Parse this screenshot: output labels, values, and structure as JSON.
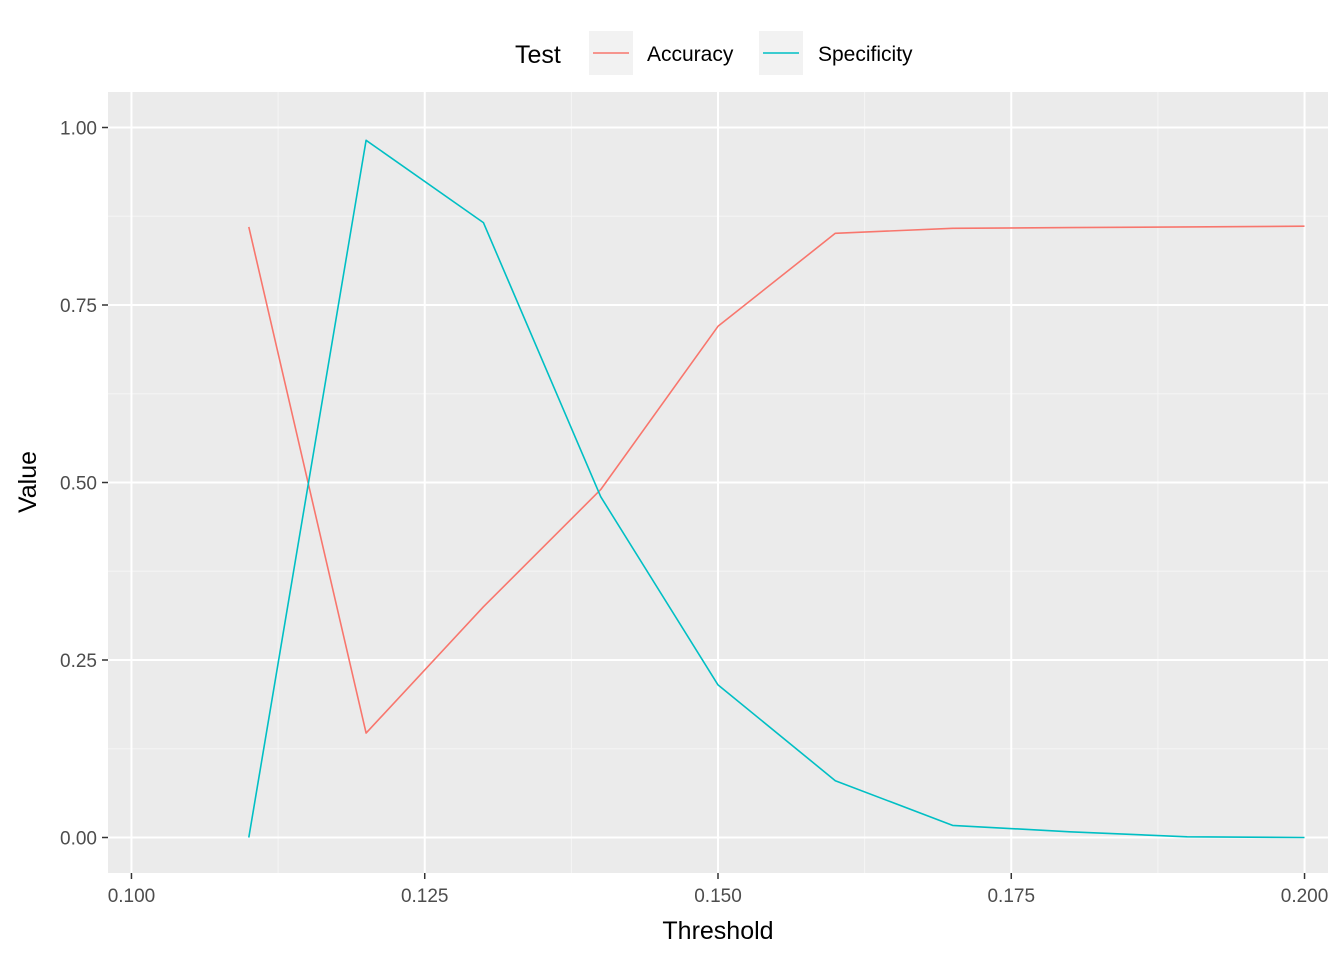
{
  "chart_data": {
    "type": "line",
    "xlabel": "Threshold",
    "ylabel": "Value",
    "xlim": [
      0.098,
      0.202
    ],
    "ylim": [
      -0.05,
      1.05
    ],
    "x_ticks": [
      0.1,
      0.125,
      0.15,
      0.175,
      0.2
    ],
    "x_tick_labels": [
      "0.100",
      "0.125",
      "0.150",
      "0.175",
      "0.200"
    ],
    "y_ticks": [
      0,
      0.25,
      0.5,
      0.75,
      1.0
    ],
    "y_tick_labels": [
      "0.00",
      "0.25",
      "0.50",
      "0.75",
      "1.00"
    ],
    "grid": true,
    "legend": {
      "title": "Test",
      "position": "top",
      "entries": [
        "Accuracy",
        "Specificity"
      ]
    },
    "series": [
      {
        "name": "Accuracy",
        "color": "#F8766D",
        "x": [
          0.11,
          0.12,
          0.13,
          0.14,
          0.15,
          0.16,
          0.17,
          0.18,
          0.19,
          0.2
        ],
        "y": [
          0.86,
          0.147,
          0.325,
          0.49,
          0.72,
          0.851,
          0.858,
          0.859,
          0.86,
          0.861
        ]
      },
      {
        "name": "Specificity",
        "color": "#00BFC4",
        "x": [
          0.11,
          0.12,
          0.13,
          0.14,
          0.15,
          0.16,
          0.17,
          0.18,
          0.19,
          0.2
        ],
        "y": [
          0.0,
          0.982,
          0.866,
          0.48,
          0.215,
          0.08,
          0.017,
          0.008,
          0.001,
          0.0
        ]
      }
    ]
  },
  "colors": {
    "panel_bg": "#EBEBEB",
    "grid_major": "#FFFFFF",
    "grid_minor": "#F5F5F5",
    "legend_key_bg": "#F2F2F2"
  }
}
